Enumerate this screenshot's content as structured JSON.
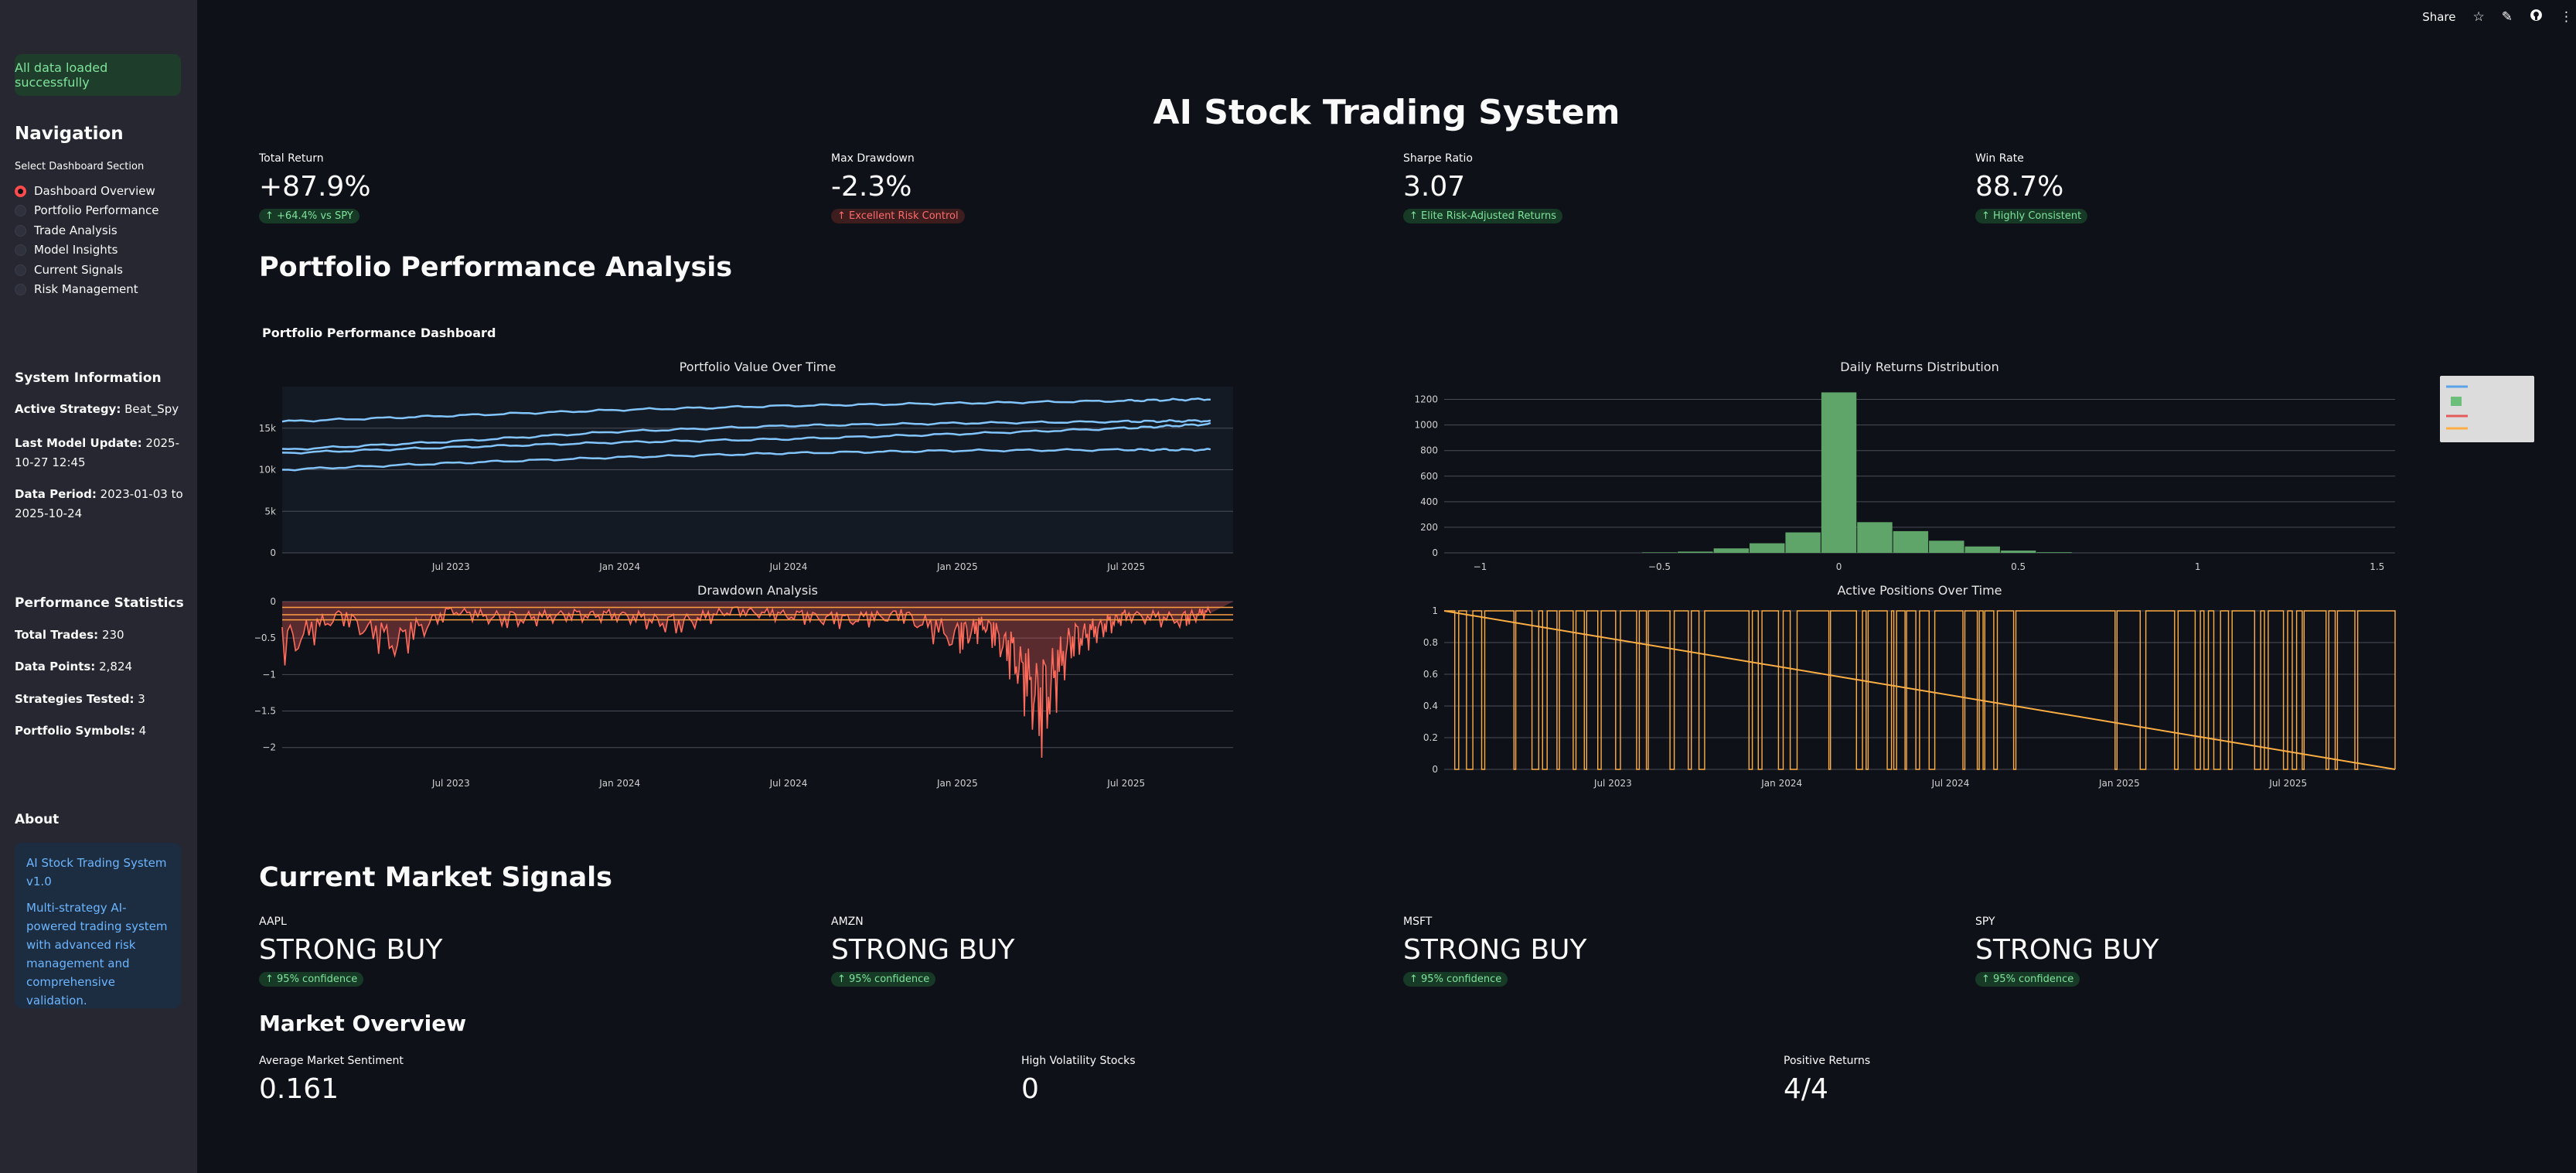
{
  "sidebar": {
    "status_message": "All data loaded successfully",
    "navigation_title": "Navigation",
    "select_label": "Select Dashboard Section",
    "nav_items": [
      "Dashboard Overview",
      "Portfolio Performance",
      "Trade Analysis",
      "Model Insights",
      "Current Signals",
      "Risk Management"
    ],
    "selected_nav": "Dashboard Overview",
    "system_info_title": "System Information",
    "system_info": [
      {
        "label": "Active Strategy:",
        "value": "Beat_Spy"
      },
      {
        "label": "Last Model Update:",
        "value": "2025-10-27 12:45"
      },
      {
        "label": "Data Period:",
        "value": "2023-01-03 to 2025-10-24"
      }
    ],
    "perf_stats_title": "Performance Statistics",
    "perf_stats": [
      {
        "label": "Total Trades:",
        "value": "230"
      },
      {
        "label": "Data Points:",
        "value": "2,824"
      },
      {
        "label": "Strategies Tested:",
        "value": "3"
      },
      {
        "label": "Portfolio Symbols:",
        "value": "4"
      }
    ],
    "about_title": "About",
    "about_line1": "AI Stock Trading System v1.0",
    "about_line2": "Multi-strategy AI-powered trading system with advanced risk management and comprehensive validation."
  },
  "toolbar": {
    "share_label": "Share",
    "icons": [
      "star-icon",
      "edit-icon",
      "github-icon",
      "more-icon"
    ]
  },
  "page": {
    "title": "AI Stock Trading System"
  },
  "kpis": [
    {
      "label": "Total Return",
      "value": "+87.9%",
      "delta": "↑ +64.4% vs SPY",
      "delta_type": "pos"
    },
    {
      "label": "Max Drawdown",
      "value": "-2.3%",
      "delta": "↑ Excellent Risk Control",
      "delta_type": "neg"
    },
    {
      "label": "Sharpe Ratio",
      "value": "3.07",
      "delta": "↑ Elite Risk-Adjusted Returns",
      "delta_type": "pos"
    },
    {
      "label": "Win Rate",
      "value": "88.7%",
      "delta": "↑ Highly Consistent",
      "delta_type": "pos"
    }
  ],
  "portfolio_section_title": "Portfolio Performance Analysis",
  "dashboard_title": "Portfolio Performance Dashboard",
  "chart_data": [
    {
      "type": "line",
      "title": "Portfolio Value Over Time",
      "x_ticks": [
        "Jul 2023",
        "Jan 2024",
        "Jul 2024",
        "Jan 2025",
        "Jul 2025"
      ],
      "y_ticks": [
        "0",
        "5k",
        "10k",
        "15k"
      ],
      "ylim": [
        0,
        20000
      ],
      "x": [
        "2023-01",
        "2023-07",
        "2024-01",
        "2024-07",
        "2025-01",
        "2025-07",
        "2025-10"
      ],
      "series": [
        {
          "values": [
            15800,
            16500,
            17200,
            17700,
            18000,
            18300,
            18500
          ]
        },
        {
          "values": [
            12400,
            13400,
            14600,
            15300,
            15600,
            15800,
            15900
          ]
        },
        {
          "values": [
            12000,
            12700,
            13300,
            13700,
            14300,
            15000,
            15500
          ]
        },
        {
          "values": [
            10000,
            10800,
            11500,
            12000,
            12300,
            12400,
            12400
          ]
        }
      ],
      "colors": [
        "#83c5ff"
      ]
    },
    {
      "type": "bar",
      "title": "Daily Returns Distribution",
      "x_ticks": [
        "−1",
        "−0.5",
        "0",
        "0.5",
        "1",
        "1.5"
      ],
      "y_ticks": [
        "0",
        "200",
        "400",
        "600",
        "800",
        "1000",
        "1200"
      ],
      "ylim": [
        0,
        1300
      ],
      "bin_centers": [
        -0.5,
        -0.4,
        -0.3,
        -0.2,
        -0.1,
        0,
        0.1,
        0.2,
        0.3,
        0.4,
        0.5,
        0.6
      ],
      "values": [
        4,
        10,
        35,
        75,
        160,
        1255,
        240,
        170,
        95,
        50,
        18,
        5
      ],
      "colors": [
        "#5fa56a"
      ]
    },
    {
      "type": "area",
      "title": "Drawdown Analysis",
      "x_ticks": [
        "Jul 2023",
        "Jan 2024",
        "Jul 2024",
        "Jan 2025",
        "Jul 2025"
      ],
      "y_ticks": [
        "0",
        "−0.5",
        "−1",
        "−1.5",
        "−2"
      ],
      "ylim": [
        -2.3,
        0
      ],
      "x": [
        "2023-01",
        "2023-03",
        "2023-05",
        "2023-07",
        "2023-09",
        "2023-11",
        "2024-01",
        "2024-03",
        "2024-05",
        "2024-07",
        "2024-09",
        "2024-11",
        "2025-01",
        "2025-02",
        "2025-03",
        "2025-04",
        "2025-05",
        "2025-06",
        "2025-07",
        "2025-09",
        "2025-10"
      ],
      "values": [
        -1.0,
        -0.3,
        -0.9,
        -0.2,
        -0.4,
        -0.3,
        -0.3,
        -0.5,
        -0.2,
        -0.3,
        -0.4,
        -0.3,
        -0.8,
        -0.5,
        -1.2,
        -2.3,
        -0.9,
        -0.6,
        -0.3,
        -0.4,
        -0.2
      ],
      "colors": [
        "#ff6b5b",
        "#ff9f43"
      ]
    },
    {
      "type": "line",
      "title": "Active Positions Over Time",
      "x_ticks": [
        "Jul 2023",
        "Jan 2024",
        "Jul 2024",
        "Jan 2025",
        "Jul 2025"
      ],
      "y_ticks": [
        "0",
        "0.2",
        "0.4",
        "0.6",
        "0.8",
        "1"
      ],
      "ylim": [
        0,
        1
      ],
      "values": "binary 0/1 position series",
      "colors": [
        "#ffae45"
      ]
    }
  ],
  "signals_title": "Current Market Signals",
  "signals": [
    {
      "symbol": "AAPL",
      "signal": "STRONG BUY",
      "confidence": "↑ 95% confidence"
    },
    {
      "symbol": "AMZN",
      "signal": "STRONG BUY",
      "confidence": "↑ 95% confidence"
    },
    {
      "symbol": "MSFT",
      "signal": "STRONG BUY",
      "confidence": "↑ 95% confidence"
    },
    {
      "symbol": "SPY",
      "signal": "STRONG BUY",
      "confidence": "↑ 95% confidence"
    }
  ],
  "market_overview_title": "Market Overview",
  "market_overview": [
    {
      "label": "Average Market Sentiment",
      "value": "0.161"
    },
    {
      "label": "High Volatility Stocks",
      "value": "0"
    },
    {
      "label": "Positive Returns",
      "value": "4/4"
    }
  ]
}
